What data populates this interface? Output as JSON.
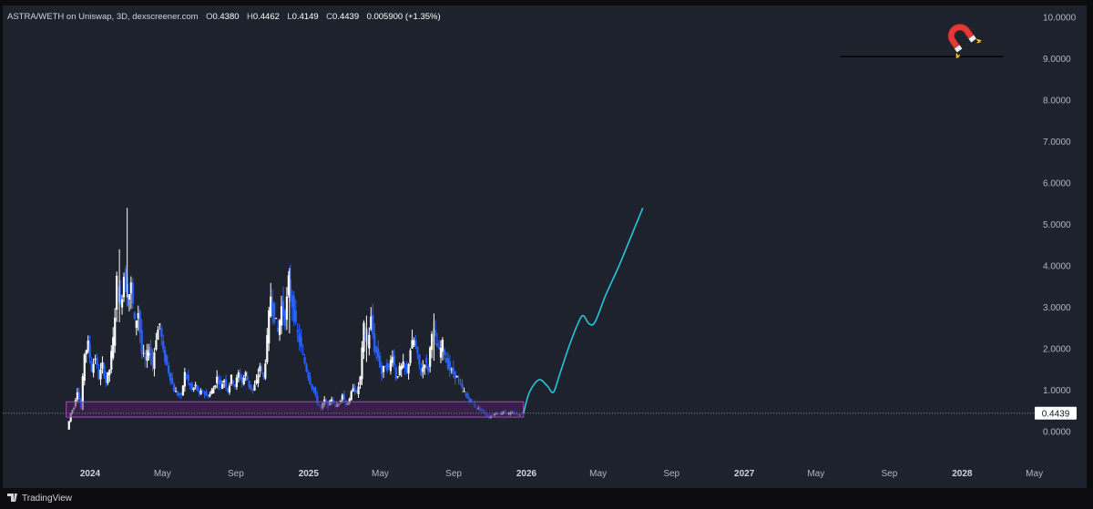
{
  "header": {
    "symbol": "ASTRA/WETH on Uniswap, 3D, dexscreener.com",
    "o_label": "O",
    "o_value": "0.4380",
    "h_label": "H",
    "h_value": "0.4462",
    "l_label": "L",
    "l_value": "0.4149",
    "c_label": "C",
    "c_value": "0.4439",
    "change": "0.005900 (+1.35%)"
  },
  "current_price": "0.4439",
  "brand": "TradingView",
  "colors": {
    "background": "#1e222d",
    "frame": "#0c0c0e",
    "candle_up": "#ffffff",
    "candle_down": "#2962ff",
    "projection": "#26c6da",
    "support_zone_fill": "#4a1f5c",
    "support_zone_stroke": "#ab47bc",
    "resistance_line": "#000000"
  },
  "icons": {
    "target_marker": "magnet-icon"
  },
  "chart_data": {
    "type": "candlestick",
    "y_ticks": [
      "10.0000",
      "9.0000",
      "8.0000",
      "7.0000",
      "6.0000",
      "5.0000",
      "4.0000",
      "3.0000",
      "2.0000",
      "1.0000",
      "0.0000"
    ],
    "ylim": [
      -0.3,
      10.2
    ],
    "x_ticks": [
      "2024",
      "May",
      "Sep",
      "2025",
      "May",
      "Sep",
      "2026",
      "May",
      "Sep",
      "2027",
      "May",
      "Sep",
      "2028",
      "May"
    ],
    "x_ticks_major": [
      "2024",
      "2025",
      "2026",
      "2027",
      "2028"
    ],
    "price_path": [
      [
        "2023-11-25",
        0.05
      ],
      [
        "2023-12-01",
        0.45
      ],
      [
        "2023-12-06",
        0.6
      ],
      [
        "2023-12-12",
        1.0
      ],
      [
        "2023-12-18",
        0.55
      ],
      [
        "2023-12-24",
        1.9
      ],
      [
        "2023-12-30",
        2.1
      ],
      [
        "2024-01-05",
        1.5
      ],
      [
        "2024-01-11",
        1.8
      ],
      [
        "2024-01-17",
        1.3
      ],
      [
        "2024-01-23",
        1.6
      ],
      [
        "2024-01-29",
        1.2
      ],
      [
        "2024-02-04",
        1.5
      ],
      [
        "2024-02-10",
        2.2
      ],
      [
        "2024-02-16",
        3.6
      ],
      [
        "2024-02-22",
        3.0
      ],
      [
        "2024-02-28",
        3.8
      ],
      [
        "2024-03-05",
        3.2
      ],
      [
        "2024-03-11",
        3.5
      ],
      [
        "2024-03-17",
        2.6
      ],
      [
        "2024-03-23",
        2.9
      ],
      [
        "2024-03-29",
        1.9
      ],
      [
        "2024-04-04",
        1.7
      ],
      [
        "2024-04-10",
        2.0
      ],
      [
        "2024-04-16",
        1.6
      ],
      [
        "2024-04-22",
        2.3
      ],
      [
        "2024-04-28",
        2.6
      ],
      [
        "2024-05-04",
        1.9
      ],
      [
        "2024-05-10",
        1.6
      ],
      [
        "2024-05-16",
        1.3
      ],
      [
        "2024-05-22",
        1.0
      ],
      [
        "2024-05-28",
        0.9
      ],
      [
        "2024-06-03",
        0.85
      ],
      [
        "2024-06-09",
        1.4
      ],
      [
        "2024-06-15",
        1.2
      ],
      [
        "2024-06-21",
        1.0
      ],
      [
        "2024-06-27",
        1.1
      ],
      [
        "2024-07-03",
        0.9
      ],
      [
        "2024-07-09",
        1.0
      ],
      [
        "2024-07-15",
        0.85
      ],
      [
        "2024-07-21",
        0.9
      ],
      [
        "2024-07-27",
        1.05
      ],
      [
        "2024-08-02",
        1.3
      ],
      [
        "2024-08-08",
        1.1
      ],
      [
        "2024-08-14",
        1.25
      ],
      [
        "2024-08-20",
        1.0
      ],
      [
        "2024-08-26",
        1.3
      ],
      [
        "2024-09-01",
        1.1
      ],
      [
        "2024-09-07",
        1.4
      ],
      [
        "2024-09-13",
        1.2
      ],
      [
        "2024-09-19",
        1.4
      ],
      [
        "2024-09-25",
        1.1
      ],
      [
        "2024-10-01",
        1.0
      ],
      [
        "2024-10-07",
        1.2
      ],
      [
        "2024-10-13",
        1.6
      ],
      [
        "2024-10-19",
        1.3
      ],
      [
        "2024-10-25",
        2.2
      ],
      [
        "2024-10-31",
        3.3
      ],
      [
        "2024-11-06",
        2.8
      ],
      [
        "2024-11-12",
        2.4
      ],
      [
        "2024-11-18",
        3.0
      ],
      [
        "2024-11-24",
        2.7
      ],
      [
        "2024-11-30",
        3.6
      ],
      [
        "2024-12-06",
        3.1
      ],
      [
        "2024-12-12",
        2.5
      ],
      [
        "2024-12-18",
        2.2
      ],
      [
        "2024-12-24",
        1.8
      ],
      [
        "2024-12-30",
        1.5
      ],
      [
        "2025-01-05",
        1.2
      ],
      [
        "2025-01-11",
        1.0
      ],
      [
        "2025-01-17",
        0.7
      ],
      [
        "2025-01-23",
        0.55
      ],
      [
        "2025-01-29",
        0.75
      ],
      [
        "2025-02-04",
        0.6
      ],
      [
        "2025-02-10",
        0.8
      ],
      [
        "2025-02-16",
        0.6
      ],
      [
        "2025-02-22",
        0.7
      ],
      [
        "2025-02-28",
        0.9
      ],
      [
        "2025-03-06",
        0.65
      ],
      [
        "2025-03-12",
        0.75
      ],
      [
        "2025-03-18",
        1.1
      ],
      [
        "2025-03-24",
        0.9
      ],
      [
        "2025-03-30",
        1.3
      ],
      [
        "2025-04-05",
        2.5
      ],
      [
        "2025-04-11",
        2.1
      ],
      [
        "2025-04-17",
        2.7
      ],
      [
        "2025-04-23",
        2.0
      ],
      [
        "2025-04-29",
        1.8
      ],
      [
        "2025-05-05",
        1.4
      ],
      [
        "2025-05-11",
        1.6
      ],
      [
        "2025-05-17",
        1.5
      ],
      [
        "2025-05-23",
        1.9
      ],
      [
        "2025-05-29",
        1.3
      ],
      [
        "2025-06-04",
        1.5
      ],
      [
        "2025-06-10",
        1.6
      ],
      [
        "2025-06-16",
        1.4
      ],
      [
        "2025-06-22",
        2.0
      ],
      [
        "2025-06-28",
        2.2
      ],
      [
        "2025-07-04",
        1.8
      ],
      [
        "2025-07-10",
        1.4
      ],
      [
        "2025-07-16",
        1.7
      ],
      [
        "2025-07-22",
        1.5
      ],
      [
        "2025-07-28",
        2.5
      ],
      [
        "2025-08-03",
        2.2
      ],
      [
        "2025-08-09",
        1.9
      ],
      [
        "2025-08-15",
        2.1
      ],
      [
        "2025-08-21",
        1.7
      ],
      [
        "2025-08-27",
        1.5
      ],
      [
        "2025-09-02",
        1.4
      ],
      [
        "2025-09-08",
        1.3
      ],
      [
        "2025-09-14",
        1.1
      ],
      [
        "2025-09-20",
        0.95
      ],
      [
        "2025-09-26",
        0.8
      ],
      [
        "2025-10-02",
        0.7
      ],
      [
        "2025-10-08",
        0.6
      ],
      [
        "2025-10-14",
        0.55
      ],
      [
        "2025-10-20",
        0.5
      ],
      [
        "2025-10-26",
        0.4
      ],
      [
        "2025-11-01",
        0.35
      ],
      [
        "2025-11-07",
        0.4
      ],
      [
        "2025-11-13",
        0.45
      ],
      [
        "2025-11-19",
        0.42
      ],
      [
        "2025-11-25",
        0.5
      ],
      [
        "2025-12-01",
        0.43
      ],
      [
        "2025-12-07",
        0.44
      ],
      [
        "2025-12-13",
        0.43
      ],
      [
        "2025-12-19",
        0.41
      ],
      [
        "2025-12-25",
        0.44
      ]
    ],
    "spikes": [
      [
        "2024-03-03",
        5.4
      ],
      [
        "2024-11-30",
        3.95
      ],
      [
        "2025-04-08",
        2.8
      ],
      [
        "2025-07-30",
        2.85
      ],
      [
        "2024-02-19",
        4.4
      ]
    ],
    "support_zone": {
      "x0": "2023-11-25",
      "x1": "2025-12-27",
      "y0": 0.35,
      "y1": 0.72
    },
    "projection": [
      [
        "2025-12-27",
        0.44
      ],
      [
        "2026-01-06",
        0.95
      ],
      [
        "2026-01-22",
        1.25
      ],
      [
        "2026-02-05",
        1.1
      ],
      [
        "2026-02-15",
        0.95
      ],
      [
        "2026-02-25",
        1.35
      ],
      [
        "2026-03-12",
        2.0
      ],
      [
        "2026-03-28",
        2.6
      ],
      [
        "2026-04-06",
        2.8
      ],
      [
        "2026-04-16",
        2.6
      ],
      [
        "2026-04-26",
        2.65
      ],
      [
        "2026-05-14",
        3.3
      ],
      [
        "2026-06-05",
        4.0
      ],
      [
        "2026-06-25",
        4.7
      ],
      [
        "2026-07-15",
        5.4
      ]
    ],
    "resistance_line": {
      "x0": "2027-06-10",
      "x1": "2028-03-10",
      "y": 9.05
    }
  }
}
